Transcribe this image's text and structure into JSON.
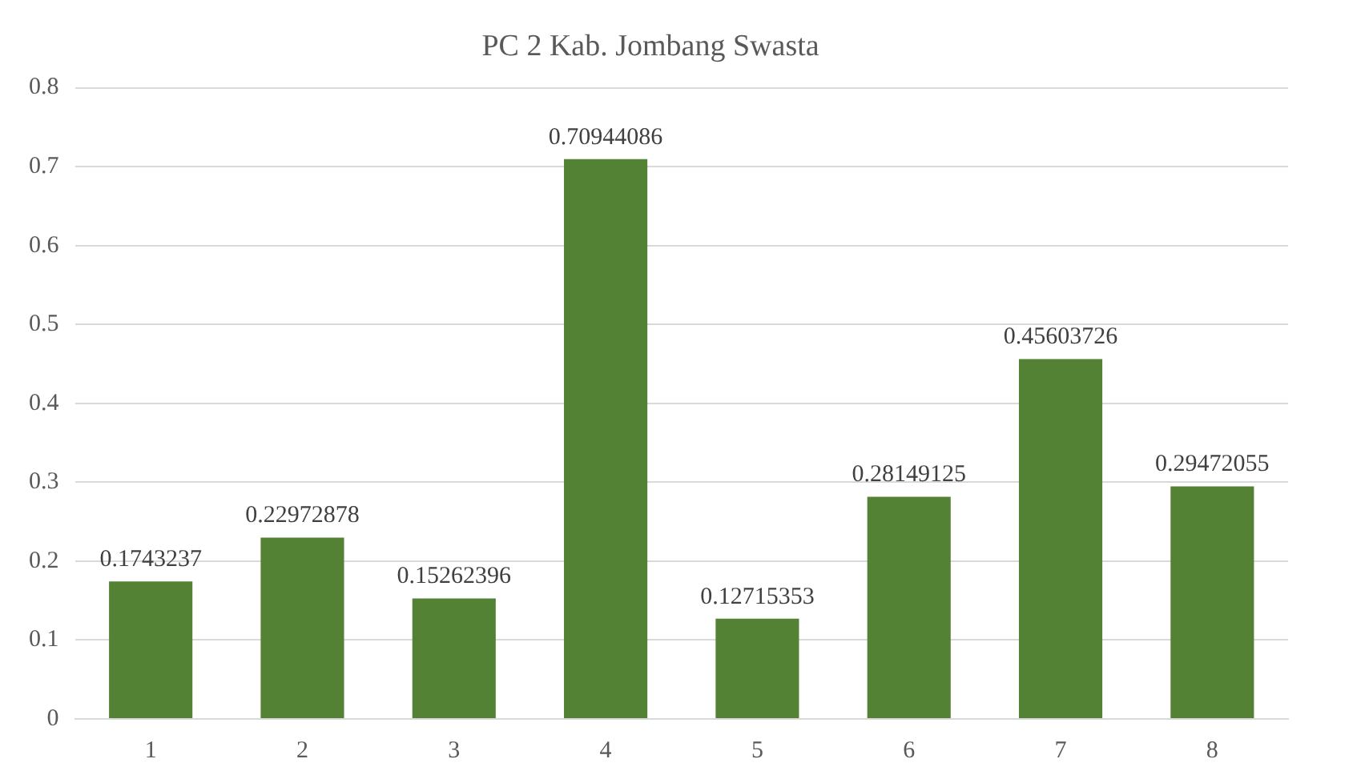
{
  "chart_data": {
    "type": "bar",
    "title": "PC 2 Kab. Jombang Swasta",
    "categories": [
      "1",
      "2",
      "3",
      "4",
      "5",
      "6",
      "7",
      "8"
    ],
    "values": [
      0.1743237,
      0.22972878,
      0.15262396,
      0.70944086,
      0.12715353,
      0.28149125,
      0.45603726,
      0.29472055
    ],
    "color": "#548235",
    "ylim": [
      0,
      0.8
    ],
    "yticks": [
      0,
      0.1,
      0.2,
      0.3,
      0.4,
      0.5,
      0.6,
      0.7,
      0.8
    ],
    "grid": "y",
    "data_labels": true
  }
}
